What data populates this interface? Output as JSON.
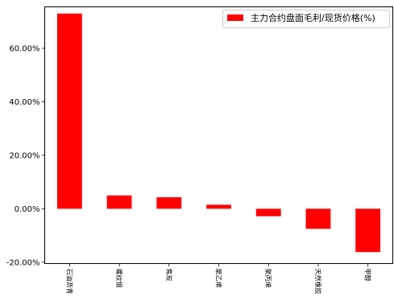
{
  "chart_data": {
    "type": "bar",
    "categories": [
      "石油沥青",
      "螺纹钢",
      "焦炭",
      "聚乙烯",
      "聚丙烯",
      "天然橡胶",
      "甲醇"
    ],
    "series": [
      {
        "name": "主力合约盘面毛利/现货价格(%)",
        "values": [
          73.0,
          5.0,
          4.3,
          1.5,
          -2.8,
          -7.5,
          -16.2
        ],
        "color": "#ff0000"
      }
    ],
    "ylim": [
      -20.5,
      75.5
    ],
    "yticks": [
      -20,
      0,
      20,
      40,
      60
    ],
    "ytick_labels": [
      "-20.00%",
      "0.00%",
      "20.00%",
      "40.00%",
      "60.00%"
    ],
    "xlabel": "",
    "ylabel": "",
    "title": "",
    "legend_position": "upper right",
    "grid": false
  }
}
